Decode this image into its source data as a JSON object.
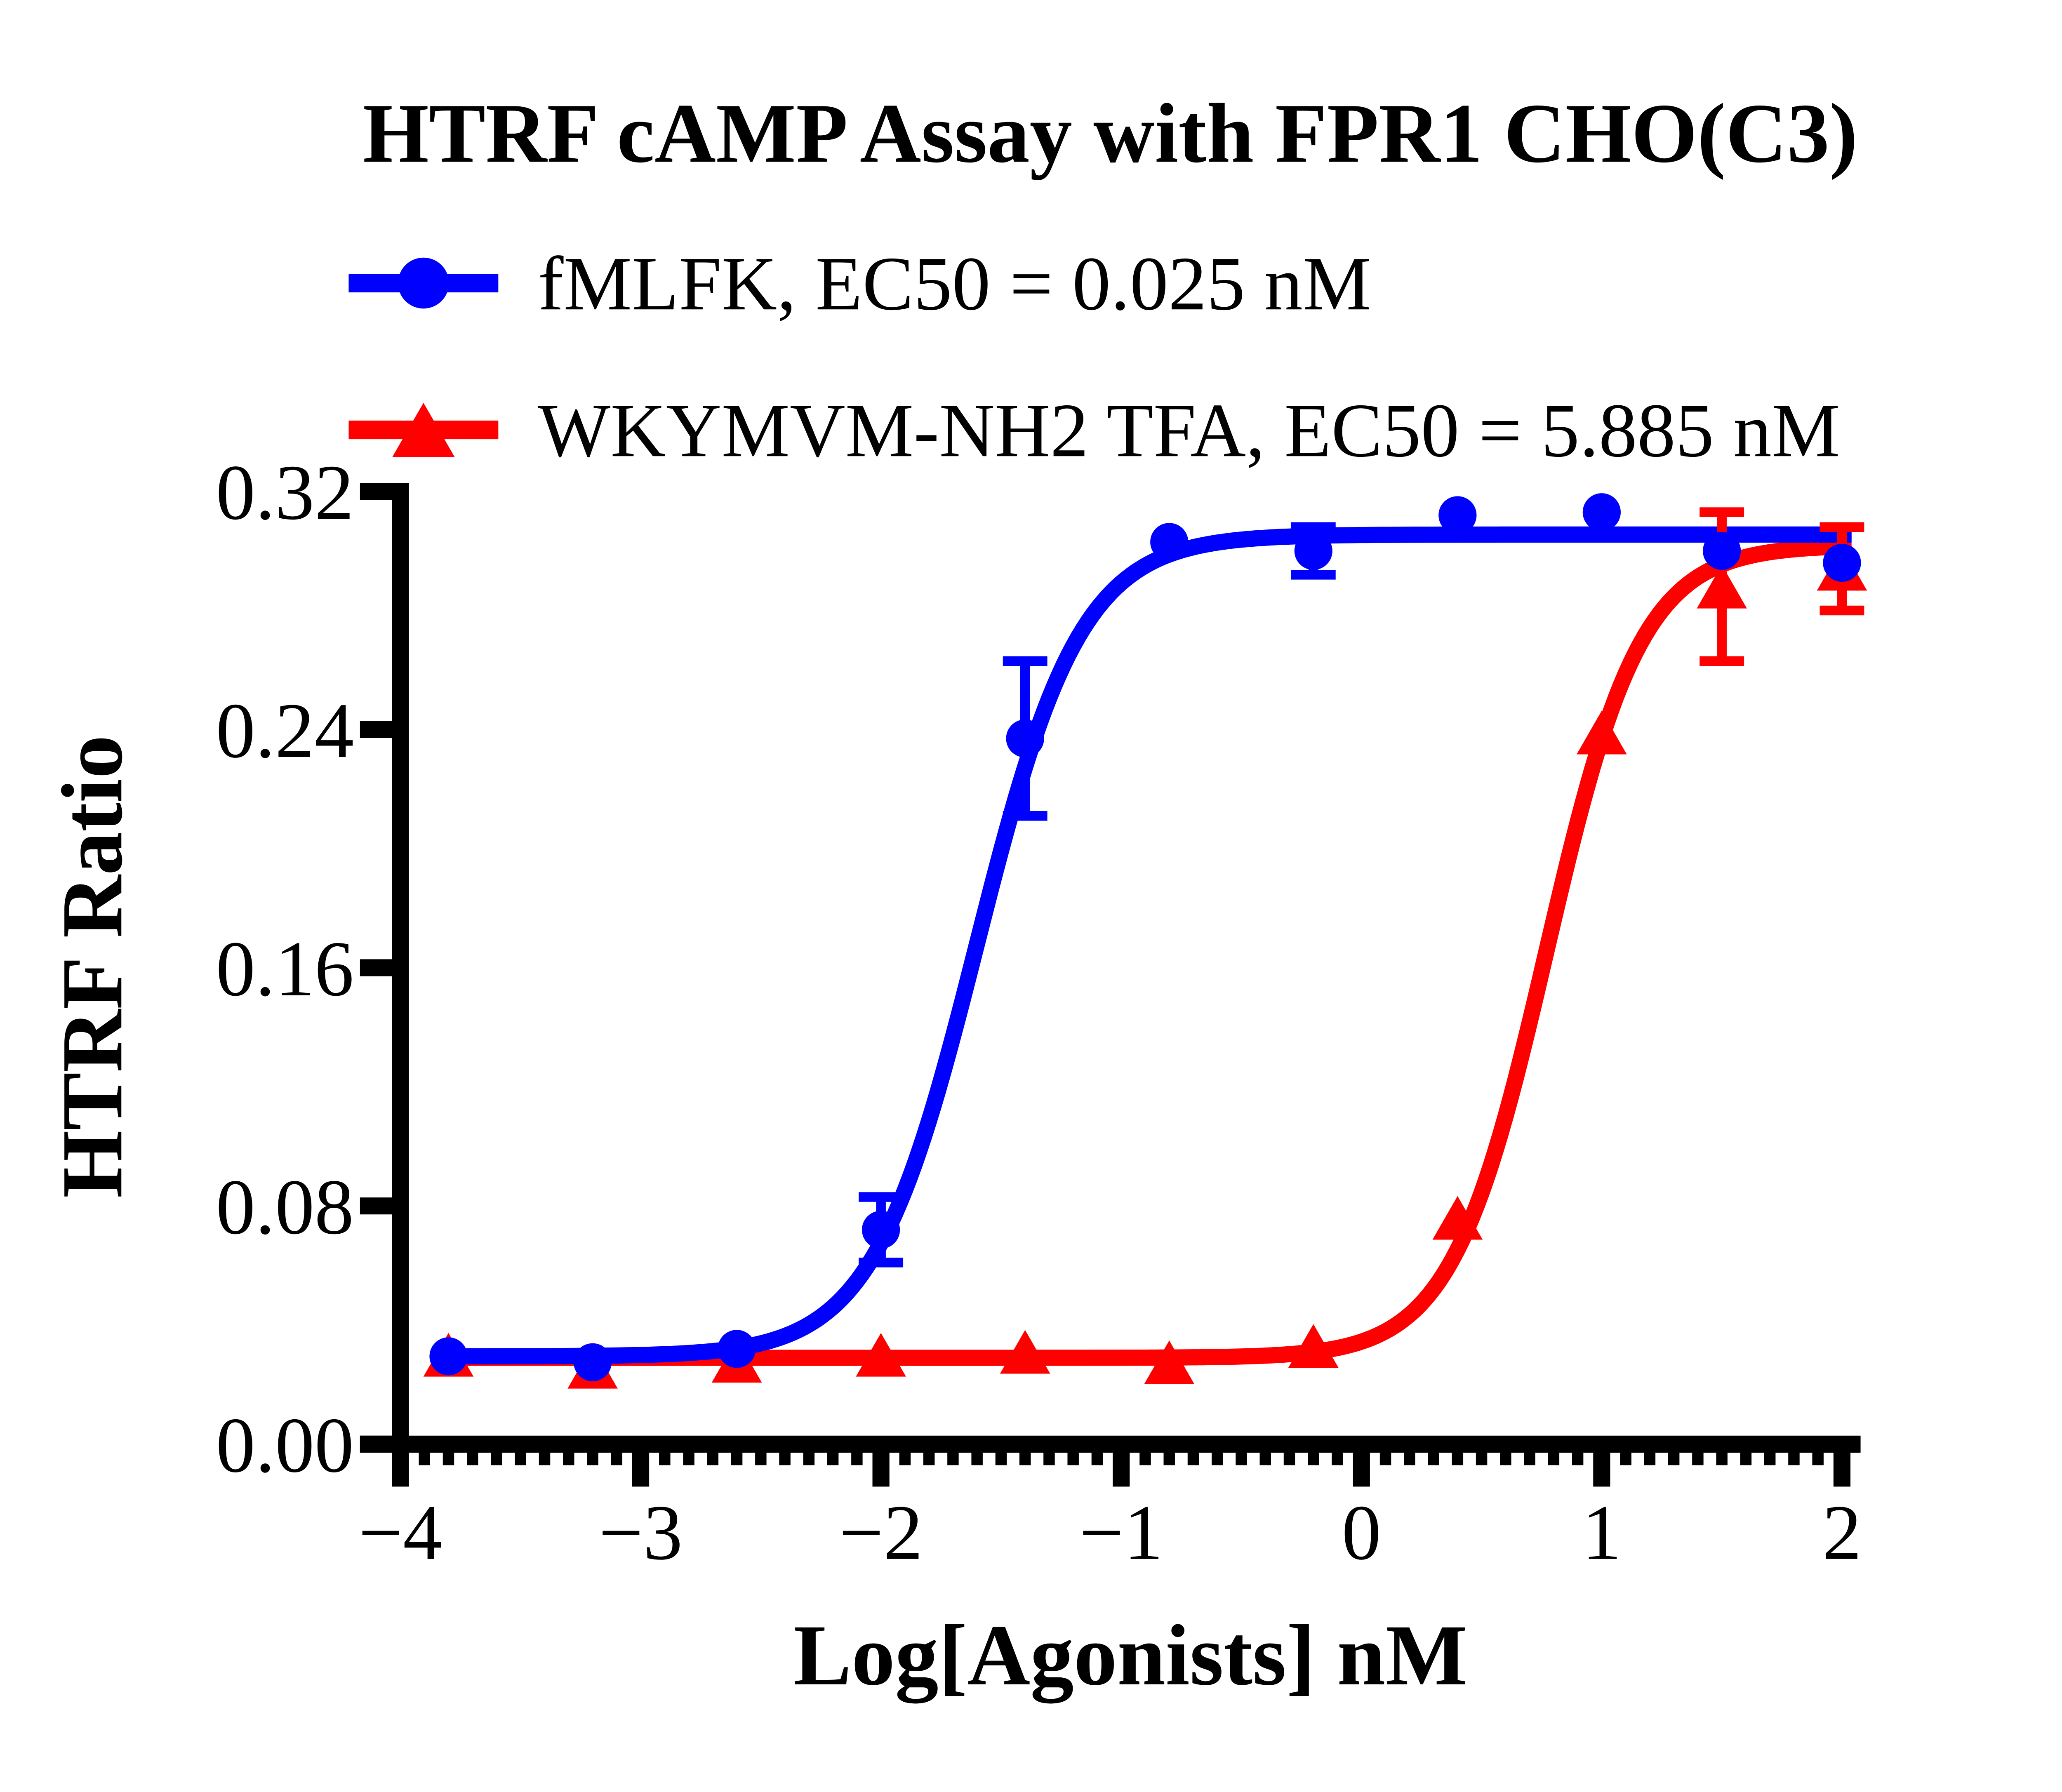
{
  "title": "HTRF cAMP Assay with FPR1 CHO(C3)",
  "colors": {
    "blue": "#0000ff",
    "red": "#ff0000",
    "axis": "#000000",
    "background": "#ffffff"
  },
  "legend": [
    {
      "label": "fMLFK,  EC50 = 0.025 nM",
      "color": "#0000ff",
      "marker": "circle"
    },
    {
      "label": "WKYMVM-NH2 TFA,  EC50 = 5.885 nM",
      "color": "#ff0000",
      "marker": "triangle"
    }
  ],
  "chart_data": {
    "type": "scatter",
    "title": "HTRF cAMP Assay with FPR1 CHO(C3)",
    "xlabel": "Log[Agonists] nM",
    "ylabel": "HTRF Ratio",
    "xlim": [
      -4,
      2
    ],
    "ylim": [
      0,
      0.32
    ],
    "x_ticks": [
      -4,
      -3,
      -2,
      -1,
      0,
      1,
      2
    ],
    "x_tick_labels": [
      "−4",
      "−3",
      "−2",
      "−1",
      "0",
      "1",
      "2"
    ],
    "x_minor_tick_step": 0.1,
    "y_ticks": [
      0,
      0.08,
      0.16,
      0.24,
      0.32
    ],
    "y_tick_labels": [
      "0.00",
      "0.08",
      "0.16",
      "0.24",
      "0.32"
    ],
    "grid": false,
    "legend_position": "top-left",
    "series": [
      {
        "name": "WKYMVM-NH2 TFA",
        "ec50_label": "EC50 = 5.885 nM",
        "ec50_nM": 5.885,
        "color": "#ff0000",
        "marker": "triangle",
        "x": [
          -3.8,
          -3.2,
          -2.6,
          -2.0,
          -1.4,
          -0.8,
          -0.2,
          0.4,
          1.0,
          1.5,
          2.0
        ],
        "y": [
          0.03,
          0.026,
          0.028,
          0.03,
          0.031,
          0.0275,
          0.033,
          0.076,
          0.239,
          0.288,
          0.294
        ],
        "yerr": [
          0,
          0,
          0,
          0,
          0,
          0,
          0,
          0,
          0,
          0.025,
          0.014
        ],
        "fit": {
          "bottom": 0.029,
          "top": 0.302,
          "logEC50": 0.7698,
          "hill": 2.2
        }
      },
      {
        "name": "fMLFK",
        "ec50_label": "EC50 = 0.025 nM",
        "ec50_nM": 0.025,
        "color": "#0000ff",
        "marker": "circle",
        "x": [
          -3.8,
          -3.2,
          -2.6,
          -2.0,
          -1.4,
          -0.8,
          -0.2,
          0.4,
          1.0,
          1.5,
          2.0
        ],
        "y": [
          0.0295,
          0.0275,
          0.032,
          0.072,
          0.237,
          0.303,
          0.3,
          0.312,
          0.313,
          0.3,
          0.296
        ],
        "yerr": [
          0,
          0,
          0,
          0.011,
          0.026,
          0,
          0.008,
          0,
          0,
          0,
          0
        ],
        "fit": {
          "bottom": 0.0295,
          "top": 0.3055,
          "logEC50": -1.602,
          "hill": 2.0
        }
      }
    ]
  }
}
